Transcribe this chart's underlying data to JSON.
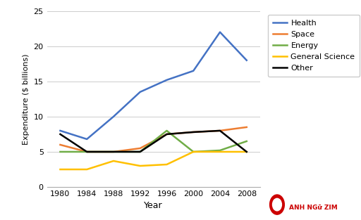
{
  "years": [
    1980,
    1984,
    1988,
    1992,
    1996,
    2000,
    2004,
    2008
  ],
  "series": {
    "Health": [
      8.0,
      6.8,
      10.0,
      13.5,
      15.2,
      16.5,
      22.0,
      18.0
    ],
    "Space": [
      6.0,
      5.0,
      5.0,
      5.5,
      7.5,
      7.8,
      8.0,
      8.5
    ],
    "Energy": [
      5.0,
      5.0,
      5.0,
      5.0,
      8.0,
      5.0,
      5.2,
      6.5
    ],
    "General Science": [
      2.5,
      2.5,
      3.7,
      3.0,
      3.2,
      5.0,
      5.0,
      5.0
    ],
    "Other": [
      7.5,
      5.0,
      5.0,
      5.0,
      7.5,
      7.8,
      8.0,
      5.0
    ]
  },
  "colors": {
    "Health": "#4472C4",
    "Space": "#ED7D31",
    "Energy": "#70AD47",
    "General Science": "#FFC000",
    "Other": "#000000"
  },
  "xlabel": "Year",
  "ylabel": "Expenditure ($ billions)",
  "ylim": [
    0,
    25
  ],
  "yticks": [
    0,
    5,
    10,
    15,
    20,
    25
  ],
  "xticks": [
    1980,
    1984,
    1988,
    1992,
    1996,
    2000,
    2004,
    2008
  ],
  "xlim": [
    1978,
    2010
  ],
  "background_color": "#ffffff",
  "grid_color": "#cccccc",
  "legend_order": [
    "Health",
    "Space",
    "Energy",
    "General Science",
    "Other"
  ],
  "watermark_text": "ANH NGữ ZIM",
  "watermark_color": "#cc0000"
}
